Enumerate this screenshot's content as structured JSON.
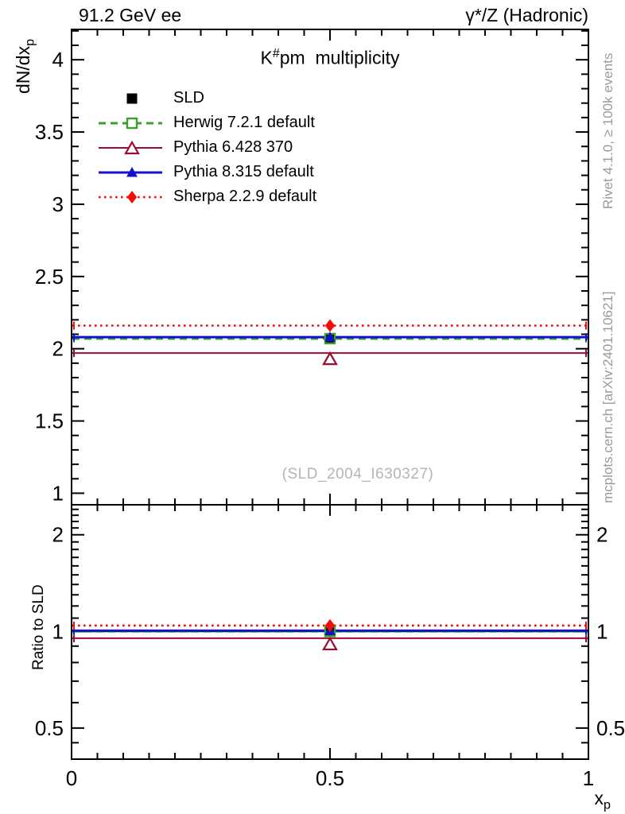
{
  "header": {
    "left_label": "91.2 GeV ee",
    "right_label": "γ*/Z (Hadronic)"
  },
  "title": {
    "base": "K",
    "sup": "#",
    "rest": "pm  multiplicity"
  },
  "watermark": "(SLD_2004_I630327)",
  "side_notes": {
    "top": "Rivet 4.1.0, ≥ 100k events",
    "bottom": "mcplots.cern.ch [arXiv:2401.10621]"
  },
  "axes": {
    "main_ylabel_base": "dN/dx",
    "main_ylabel_sub": "p",
    "ratio_ylabel": "Ratio to SLD",
    "xlabel_base": "x",
    "xlabel_sub": "p"
  },
  "colors": {
    "sld": "#000000",
    "herwig": "#3aa02a",
    "pythia6": "#9a0d30",
    "pythia8": "#1212cc",
    "sherpa": "#f20c0c",
    "note_gray": "#9a9a9a",
    "watermark_gray": "#b5b5b5"
  },
  "chart_data": {
    "type": "line",
    "title": "K#pm multiplicity",
    "xlabel": "x_p",
    "x_point": 0.5,
    "xlim": [
      0,
      1
    ],
    "xticks": {
      "majors": [
        0,
        0.5,
        1
      ],
      "labels": [
        "0",
        "0.5",
        "1"
      ],
      "minor_step": 0.05
    },
    "panels": [
      {
        "name": "main",
        "ylabel": "dN/dx_p",
        "yscale": "linear",
        "ylim": [
          0.92,
          4.21
        ],
        "yticks": {
          "majors": [
            1,
            1.5,
            2,
            2.5,
            3,
            3.5,
            4
          ],
          "labels": [
            "1",
            "1.5",
            "2",
            "2.5",
            "3",
            "3.5",
            "4"
          ],
          "minor_step": 0.1,
          "labels_right": false
        }
      },
      {
        "name": "ratio",
        "ylabel": "Ratio to SLD",
        "yscale": "log",
        "ylim": [
          0.4,
          2.48
        ],
        "yticks": {
          "majors": [
            0.5,
            1,
            2
          ],
          "labels": [
            "0.5",
            "1",
            "2"
          ],
          "minors": [
            0.45,
            0.6,
            0.7,
            0.8,
            0.9,
            1.1,
            1.2,
            1.3,
            1.4,
            1.5,
            1.6,
            1.7,
            1.8,
            1.9,
            2.1,
            2.2,
            2.3,
            2.4
          ],
          "labels_right": true
        }
      }
    ],
    "series": [
      {
        "key": "sld",
        "label": "SLD",
        "color": "#000000",
        "line": "none",
        "ratio_line": "solid",
        "marker": "square-filled",
        "value": 2.07,
        "ratio": 1.0
      },
      {
        "key": "herwig",
        "label": "Herwig 7.2.1 default",
        "color": "#3aa02a",
        "line": "dashed",
        "marker": "square-open",
        "value": 2.07,
        "ratio": 1.0
      },
      {
        "key": "pythia6",
        "label": "Pythia 6.428 370",
        "color": "#9a0d30",
        "line": "solid",
        "marker": "triangle-open",
        "value": 1.97,
        "ratio": 0.952
      },
      {
        "key": "pythia8",
        "label": "Pythia 8.315 default",
        "color": "#1212cc",
        "line": "solid",
        "marker": "triangle-filled",
        "value": 2.08,
        "ratio": 1.005
      },
      {
        "key": "sherpa",
        "label": "Sherpa 2.2.9 default",
        "color": "#f20c0c",
        "line": "dotted",
        "marker": "diamond-filled",
        "value": 2.16,
        "ratio": 1.043
      }
    ],
    "legend_position": "top-left-inside",
    "grid": false
  }
}
